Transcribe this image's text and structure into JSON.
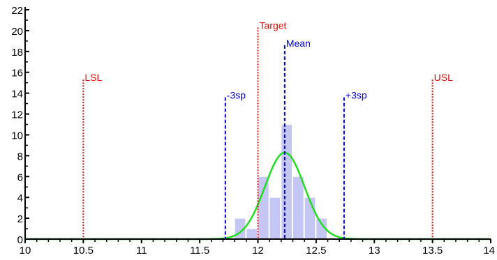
{
  "chart_data": {
    "type": "histogram",
    "title": "",
    "xlabel": "",
    "ylabel": "",
    "xlim": [
      10,
      14
    ],
    "ylim": [
      0,
      22
    ],
    "x_ticks": [
      {
        "value": 10,
        "label": "10"
      },
      {
        "value": 10.5,
        "label": "10.5"
      },
      {
        "value": 11,
        "label": "11"
      },
      {
        "value": 11.5,
        "label": "11.5"
      },
      {
        "value": 12,
        "label": "12"
      },
      {
        "value": 12.5,
        "label": "12.5"
      },
      {
        "value": 13,
        "label": "13"
      },
      {
        "value": 13.5,
        "label": "13.5"
      },
      {
        "value": 14,
        "label": "14"
      }
    ],
    "y_ticks": [
      {
        "value": 0,
        "label": "0"
      },
      {
        "value": 2,
        "label": "2"
      },
      {
        "value": 4,
        "label": "4"
      },
      {
        "value": 6,
        "label": "6"
      },
      {
        "value": 8,
        "label": "8"
      },
      {
        "value": 10,
        "label": "10"
      },
      {
        "value": 12,
        "label": "12"
      },
      {
        "value": 14,
        "label": "14"
      },
      {
        "value": 16,
        "label": "16"
      },
      {
        "value": 18,
        "label": "18"
      },
      {
        "value": 20,
        "label": "20"
      },
      {
        "value": 22,
        "label": "22"
      }
    ],
    "bins": [
      {
        "x0": 11.8,
        "x1": 11.9,
        "count": 2
      },
      {
        "x0": 11.9,
        "x1": 12.0,
        "count": 1
      },
      {
        "x0": 12.0,
        "x1": 12.1,
        "count": 6
      },
      {
        "x0": 12.1,
        "x1": 12.2,
        "count": 4
      },
      {
        "x0": 12.2,
        "x1": 12.3,
        "count": 11
      },
      {
        "x0": 12.3,
        "x1": 12.4,
        "count": 6
      },
      {
        "x0": 12.4,
        "x1": 12.5,
        "count": 4
      },
      {
        "x0": 12.5,
        "x1": 12.6,
        "count": 2
      }
    ],
    "normal_curve": {
      "mean": 12.23,
      "sd": 0.17,
      "peak": 8.3
    },
    "reference_lines": [
      {
        "name": "LSL",
        "label": "LSL",
        "x": 10.5,
        "top": 15.3,
        "color": "#dd1111",
        "style": "dotted"
      },
      {
        "name": "Target",
        "label": "Target",
        "x": 12.0,
        "top": 20.3,
        "color": "#dd1111",
        "style": "dotted"
      },
      {
        "name": "USL",
        "label": "USL",
        "x": 13.5,
        "top": 15.3,
        "color": "#dd1111",
        "style": "dotted"
      },
      {
        "name": "Mean",
        "label": "Mean",
        "x": 12.23,
        "top": 18.6,
        "color": "#0000cc",
        "style": "dashed"
      },
      {
        "name": "-3sp",
        "label": "-3sp",
        "x": 11.72,
        "top": 13.6,
        "color": "#0000cc",
        "style": "dashed"
      },
      {
        "name": "+3sp",
        "label": "+3sp",
        "x": 12.74,
        "top": 13.6,
        "color": "#0000cc",
        "style": "dashed"
      }
    ],
    "colors": {
      "bars": "#c4c7f4",
      "curve": "#22dd22",
      "axis": "#000000"
    },
    "grid": false
  }
}
